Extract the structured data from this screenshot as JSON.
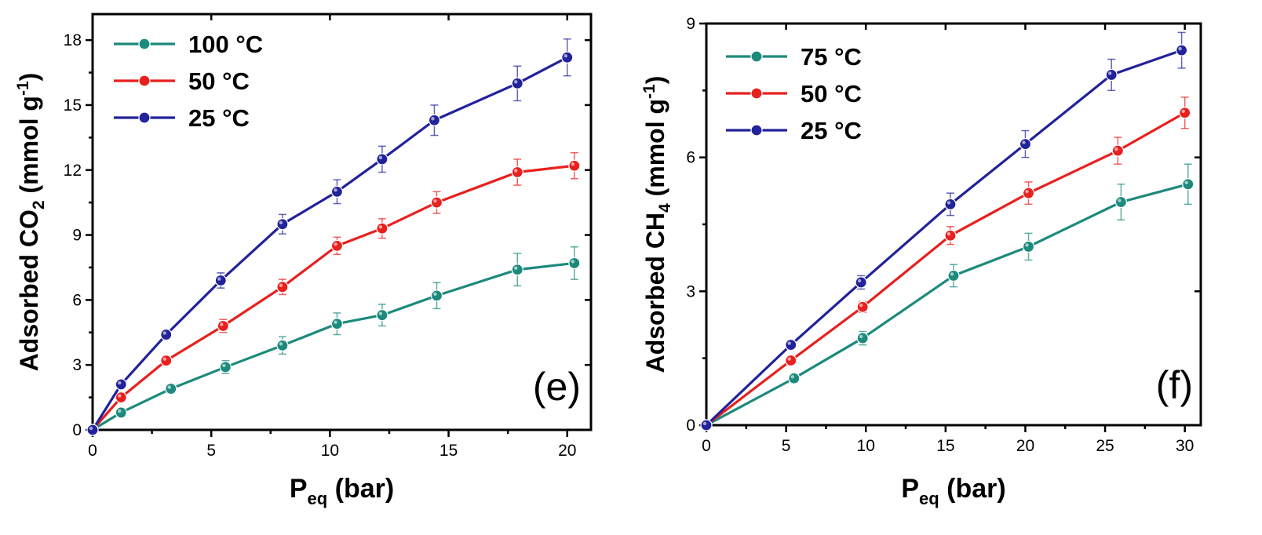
{
  "colors": {
    "c100": "#1c8a7c",
    "c75": "#1c8a7c",
    "c50": "#e8201e",
    "c25": "#22229a"
  },
  "chart_data": [
    {
      "type": "line",
      "panel_label": "(e)",
      "xlabel": {
        "main": "P",
        "sub": "eq",
        "rest": " (bar)"
      },
      "ylabel": {
        "main": "Adsorbed CO",
        "sub": "2",
        "rest": " (mmol g",
        "sup": "-1",
        "end": ")"
      },
      "xlim": [
        0,
        21
      ],
      "ylim": [
        0,
        19.2
      ],
      "xticks": [
        0,
        5,
        10,
        15,
        20
      ],
      "yticks": [
        0,
        3,
        6,
        9,
        12,
        15,
        18
      ],
      "legend_position": "top-left",
      "series": [
        {
          "name": "100 °C",
          "color": "#1c8a7c",
          "x": [
            0,
            1.2,
            3.3,
            5.6,
            8.0,
            10.3,
            12.2,
            14.5,
            17.9,
            20.3
          ],
          "y": [
            0,
            0.8,
            1.9,
            2.9,
            3.9,
            4.9,
            5.3,
            6.2,
            7.4,
            7.7
          ],
          "err": [
            0,
            0.15,
            0.2,
            0.3,
            0.4,
            0.5,
            0.5,
            0.6,
            0.75,
            0.75
          ]
        },
        {
          "name": "50 °C",
          "color": "#e8201e",
          "x": [
            0,
            1.2,
            3.1,
            5.5,
            8.0,
            10.3,
            12.2,
            14.5,
            17.9,
            20.3
          ],
          "y": [
            0,
            1.5,
            3.2,
            4.8,
            6.6,
            8.5,
            9.3,
            10.5,
            11.9,
            12.2
          ],
          "err": [
            0,
            0.15,
            0.2,
            0.3,
            0.35,
            0.4,
            0.45,
            0.5,
            0.6,
            0.6
          ]
        },
        {
          "name": "25 °C",
          "color": "#22229a",
          "x": [
            0,
            1.2,
            3.1,
            5.4,
            8.0,
            10.3,
            12.2,
            14.4,
            17.9,
            20.0
          ],
          "y": [
            0,
            2.1,
            4.4,
            6.9,
            9.5,
            11.0,
            12.5,
            14.3,
            16.0,
            17.2
          ],
          "err": [
            0,
            0.15,
            0.2,
            0.35,
            0.45,
            0.55,
            0.6,
            0.7,
            0.8,
            0.85
          ]
        }
      ]
    },
    {
      "type": "line",
      "panel_label": "(f)",
      "xlabel": {
        "main": "P",
        "sub": "eq",
        "rest": " (bar)"
      },
      "ylabel": {
        "main": "Adsorbed CH",
        "sub": "4",
        "rest": " (mmol g",
        "sup": "-1",
        "end": ")"
      },
      "xlim": [
        0,
        31
      ],
      "ylim": [
        0,
        9
      ],
      "xticks": [
        0,
        5,
        10,
        15,
        20,
        25,
        30
      ],
      "yticks": [
        0,
        3,
        6,
        9
      ],
      "legend_position": "top-left",
      "series": [
        {
          "name": "75 °C",
          "color": "#1c8a7c",
          "x": [
            0,
            5.5,
            9.8,
            15.5,
            20.2,
            26.0,
            30.2
          ],
          "y": [
            0,
            1.05,
            1.95,
            3.35,
            4.0,
            5.0,
            5.4
          ],
          "err": [
            0,
            0.08,
            0.15,
            0.25,
            0.3,
            0.4,
            0.45
          ]
        },
        {
          "name": "50 °C",
          "color": "#e8201e",
          "x": [
            0,
            5.3,
            9.8,
            15.3,
            20.2,
            25.8,
            30.0
          ],
          "y": [
            0,
            1.45,
            2.65,
            4.25,
            5.2,
            6.15,
            7.0
          ],
          "err": [
            0,
            0.08,
            0.12,
            0.2,
            0.25,
            0.3,
            0.35
          ]
        },
        {
          "name": "25 °C",
          "color": "#22229a",
          "x": [
            0,
            5.3,
            9.7,
            15.3,
            20.0,
            25.4,
            29.8
          ],
          "y": [
            0,
            1.8,
            3.2,
            4.95,
            6.3,
            7.85,
            8.4
          ],
          "err": [
            0,
            0.08,
            0.15,
            0.25,
            0.3,
            0.35,
            0.4
          ]
        }
      ]
    }
  ]
}
